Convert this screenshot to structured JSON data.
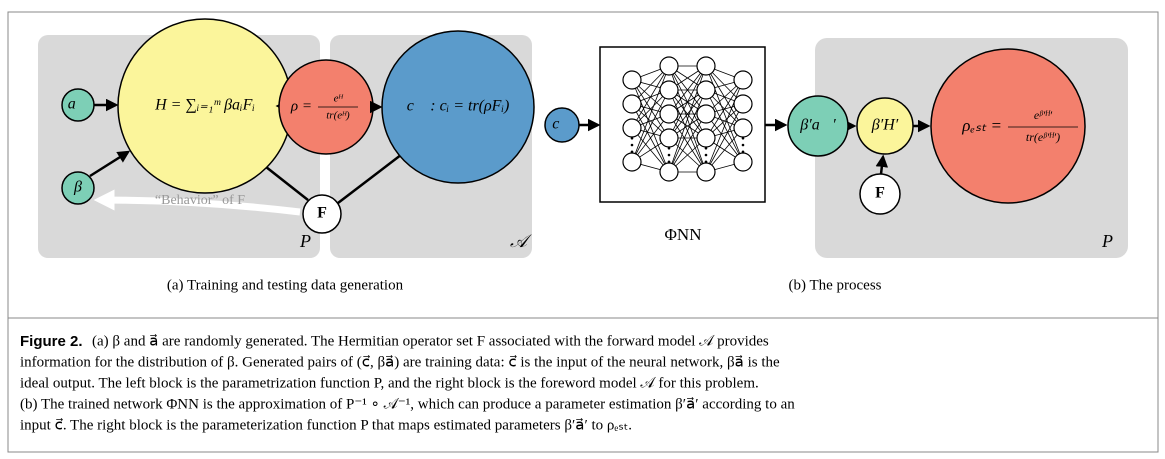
{
  "panels": [
    {
      "caption": "(a) Training and testing data generation",
      "nodes": {
        "a": "a⃗",
        "beta": "β",
        "hamiltonian": "H = ∑ᵢ₌₁ᵐ βaᵢFᵢ",
        "rho": {
          "lhs": "ρ =",
          "num": "eᴴ",
          "den": "tr(eᴴ)"
        },
        "c": "c⃗ : cᵢ = tr(ρFᵢ)",
        "operators": "F"
      },
      "arrow_label": "“Behavior” of F",
      "block_labels": [
        "P",
        "𝒜"
      ]
    },
    {
      "caption": "(b) The process",
      "nodes": {
        "c": "c⃗",
        "network": "ΦNN",
        "beta_a": "β′a⃗′",
        "beta_h": "β′H′",
        "rho_est": {
          "lhs": "ρₑₛₜ =",
          "num": "eᵝ′ᴴ′",
          "den": "tr(eᵝ′ᴴ′)"
        },
        "operators": "F"
      },
      "block_labels": [
        "P"
      ]
    }
  ],
  "figure_caption": {
    "label": "Figure 2.",
    "lines": [
      "(a) β and a⃗ are randomly generated. The Hermitian operator set F associated with the forward model 𝒜 provides",
      "information for the distribution of β. Generated pairs of (c⃗, βa⃗) are training data: c⃗ is the input of the neural network, βa⃗ is the",
      "ideal output. The left block is the parametrization function P, and the right block is the foreword model 𝒜 for this problem.",
      "(b) The trained network ΦNN is the approximation of P⁻¹ ∘ 𝒜⁻¹, which can produce a parameter estimation β′a⃗′ according to an",
      "input c⃗. The right block is the parameterization function P that maps estimated parameters β′a⃗′ to ρₑₛₜ."
    ]
  }
}
